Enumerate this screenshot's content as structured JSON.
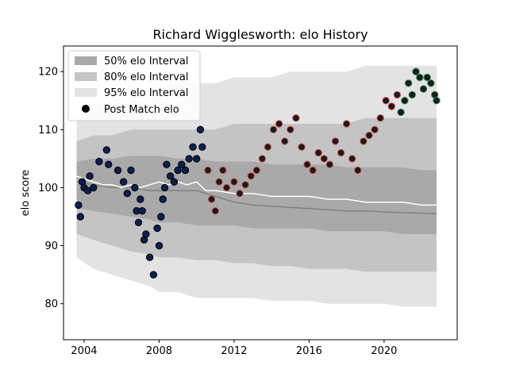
{
  "chart_data": {
    "type": "scatter",
    "title": "Richard Wigglesworth: elo History",
    "xlabel": "",
    "ylabel": "elo score",
    "xlim": [
      2002.9,
      2023.9
    ],
    "ylim": [
      73.8,
      124.4
    ],
    "x_ticks": [
      2004,
      2008,
      2012,
      2016,
      2020
    ],
    "x_tick_labels": [
      "2004",
      "2008",
      "2012",
      "2016",
      "2020"
    ],
    "y_ticks": [
      80,
      90,
      100,
      110,
      120
    ],
    "y_tick_labels": [
      "80",
      "90",
      "100",
      "110",
      "120"
    ],
    "grid": false,
    "legend_position": "top-left",
    "legend": [
      {
        "label": "50% elo Interval",
        "kind": "band",
        "color": "#a9a9a9"
      },
      {
        "label": "80% elo Interval",
        "kind": "band",
        "color": "#c4c4c4"
      },
      {
        "label": "95% elo Interval",
        "kind": "band",
        "color": "#e3e3e3"
      },
      {
        "label": "Post Match elo",
        "kind": "marker",
        "color": "#000000"
      }
    ],
    "colors": {
      "band50": "#a9a9a9",
      "band80": "#c4c4c4",
      "band95": "#e3e3e3",
      "median_line": "#808080",
      "mean_line": "#ffffff",
      "points_early": "#0d1f4f",
      "points_late": "#1a1a1a",
      "outline_late": "#d9534f",
      "outline_recent": "#2e8b57"
    },
    "bands_x": [
      2003.6,
      2004.5,
      2005.5,
      2006.5,
      2007.5,
      2008.0,
      2009.0,
      2010.0,
      2011.0,
      2012.0,
      2013.0,
      2014.0,
      2015.0,
      2016.0,
      2017.0,
      2018.0,
      2019.0,
      2020.0,
      2021.0,
      2022.0,
      2022.8
    ],
    "band95_upper": [
      112,
      114,
      115,
      116,
      117,
      117,
      118,
      118,
      118,
      119,
      119,
      119,
      120,
      120,
      120,
      120,
      121,
      121,
      121,
      121,
      121
    ],
    "band95_lower": [
      88,
      86,
      85,
      84,
      83,
      82,
      82,
      81,
      81,
      81,
      81,
      80.5,
      80.5,
      80.5,
      80,
      80,
      80,
      80,
      79.5,
      79.5,
      79.5
    ],
    "band80_upper": [
      108,
      109,
      109,
      110,
      110,
      110,
      110,
      110,
      110,
      111,
      111,
      111,
      111,
      111,
      111,
      111,
      112,
      112,
      112,
      112,
      112
    ],
    "band80_lower": [
      92,
      91,
      90,
      89,
      88.5,
      88,
      88,
      87.5,
      87.5,
      87,
      87,
      86.5,
      86.5,
      86,
      86,
      86,
      85.5,
      85.5,
      85.5,
      85.5,
      85.5
    ],
    "band50_upper": [
      104.5,
      105,
      105,
      105.5,
      105.5,
      105.5,
      105,
      105,
      104.5,
      104.5,
      104.5,
      104,
      104,
      104,
      104,
      103.5,
      103.5,
      103.5,
      103.5,
      103,
      103
    ],
    "band50_lower": [
      96.5,
      96,
      95.5,
      95,
      94.5,
      94,
      94,
      93.5,
      93.5,
      93.5,
      93,
      93,
      93,
      93,
      92.5,
      92.5,
      92.5,
      92.5,
      92,
      92,
      92
    ],
    "median_line": {
      "x": [
        2003.6,
        2004.5,
        2005.5,
        2006.5,
        2007.5,
        2008.5,
        2009.5,
        2010.0,
        2011.0,
        2012.0,
        2013.0,
        2014.0,
        2015.0,
        2016.0,
        2017.0,
        2018.0,
        2019.0,
        2020.0,
        2021.0,
        2022.0,
        2022.8
      ],
      "y": [
        101,
        100.5,
        100,
        100,
        99.5,
        99.5,
        99.5,
        99.5,
        98.5,
        97.5,
        97,
        96.8,
        96.6,
        96.4,
        96.2,
        96,
        96,
        95.8,
        95.7,
        95.6,
        95.5
      ]
    },
    "mean_line": {
      "x": [
        2003.6,
        2004.0,
        2004.5,
        2005.0,
        2005.5,
        2006.0,
        2006.5,
        2007.0,
        2007.5,
        2008.0,
        2008.5,
        2009.0,
        2009.5,
        2010.0,
        2010.5,
        2011.0,
        2012.0,
        2013.0,
        2014.0,
        2015.0,
        2016.0,
        2017.0,
        2018.0,
        2019.0,
        2020.0,
        2021.0,
        2022.0,
        2022.8
      ],
      "y": [
        102,
        101.5,
        101,
        100.5,
        100.5,
        100,
        100.5,
        100,
        100.5,
        101,
        100.5,
        101,
        100.5,
        101,
        99.5,
        99.5,
        99,
        99,
        98.5,
        98.5,
        98.5,
        98,
        98,
        97.5,
        97.5,
        97.5,
        97,
        97
      ]
    },
    "points_early": {
      "x": [
        2003.7,
        2003.8,
        2003.9,
        2004.0,
        2004.2,
        2004.3,
        2004.5,
        2004.8,
        2005.2,
        2005.3,
        2005.8,
        2006.1,
        2006.3,
        2006.5,
        2006.7,
        2006.8,
        2006.9,
        2007.0,
        2007.1,
        2007.2,
        2007.3,
        2007.5,
        2007.7,
        2007.9,
        2008.0,
        2008.1,
        2008.2,
        2008.3,
        2008.4,
        2008.6,
        2008.8,
        2009.0,
        2009.2,
        2009.4,
        2009.6,
        2009.8,
        2010.0,
        2010.2,
        2010.3
      ],
      "y": [
        97,
        95,
        101,
        100,
        99.5,
        102,
        100,
        104.5,
        106.5,
        104,
        103,
        101,
        99,
        103,
        100,
        96,
        94,
        98,
        96,
        91,
        92,
        88,
        85,
        93,
        90,
        95,
        98,
        100,
        104,
        102,
        101,
        103,
        104,
        103,
        105,
        107,
        105,
        110,
        107
      ]
    },
    "points_late": {
      "x": [
        2010.6,
        2010.8,
        2011.0,
        2011.2,
        2011.4,
        2011.6,
        2012.0,
        2012.3,
        2012.6,
        2012.9,
        2013.2,
        2013.5,
        2013.8,
        2014.1,
        2014.4,
        2014.7,
        2015.0,
        2015.3,
        2015.6,
        2015.9,
        2016.2,
        2016.5,
        2016.8,
        2017.1,
        2017.4,
        2017.7,
        2018.0,
        2018.3,
        2018.6,
        2018.9,
        2019.2,
        2019.5,
        2019.8,
        2020.1,
        2020.4,
        2020.7
      ],
      "y": [
        103,
        98,
        96,
        101,
        103,
        100,
        101,
        99,
        100.5,
        102,
        103,
        105,
        107,
        110,
        111,
        108,
        110,
        112,
        107,
        104,
        103,
        106,
        105,
        104,
        108,
        106,
        111,
        105,
        103,
        108,
        109,
        110,
        112,
        115,
        114,
        116
      ]
    },
    "points_recent": {
      "x": [
        2020.9,
        2021.1,
        2021.3,
        2021.5,
        2021.7,
        2021.9,
        2022.1,
        2022.3,
        2022.5,
        2022.7,
        2022.8
      ],
      "y": [
        113,
        115,
        118,
        116,
        120,
        119,
        117,
        119,
        118,
        116,
        115
      ]
    }
  }
}
